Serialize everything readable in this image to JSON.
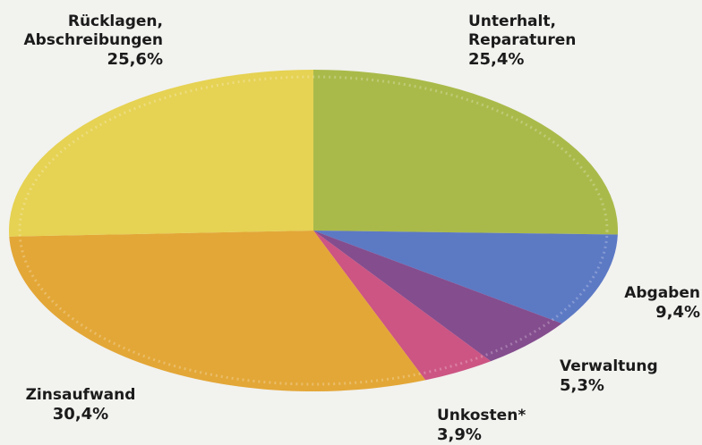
{
  "chart_data": {
    "type": "pie",
    "categories": [
      "Unterhalt, Reparaturen",
      "Abgaben",
      "Verwaltung",
      "Unkosten*",
      "Zinsaufwand",
      "Rücklagen, Abschreibungen"
    ],
    "values": [
      25.4,
      9.4,
      5.3,
      3.9,
      30.4,
      25.6
    ],
    "value_labels": [
      "25,4%",
      "9,4%",
      "5,3%",
      "3,9%",
      "30,4%",
      "25,6%"
    ],
    "colors": [
      "#a4b53c",
      "#4f6fc0",
      "#7b3f86",
      "#c9487a",
      "#e2a127",
      "#e5cf45"
    ]
  }
}
